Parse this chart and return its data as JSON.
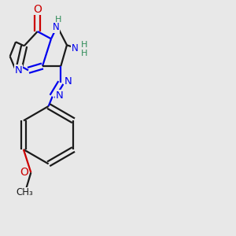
{
  "bg_color": "#e8e8e8",
  "bond_color": "#1a1a1a",
  "blue_color": "#0000ee",
  "red_color": "#cc0000",
  "teal_color": "#2e8b57",
  "lw": 1.6,
  "dbo": 0.12,
  "figsize": [
    3.0,
    3.0
  ],
  "dpi": 100,
  "xlim": [
    0,
    10
  ],
  "ylim": [
    0,
    10
  ]
}
